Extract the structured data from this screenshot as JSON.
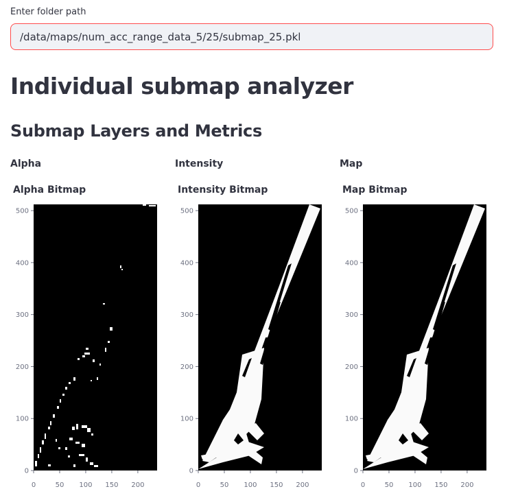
{
  "folder_input": {
    "label": "Enter folder path",
    "value": "/data/maps/num_acc_range_data_5/25/submap_25.pkl"
  },
  "page_title": "Individual submap analyzer",
  "section_title": "Submap Layers and Metrics",
  "columns": [
    {
      "key": "alpha",
      "label": "Alpha",
      "plot_title": "Alpha Bitmap"
    },
    {
      "key": "intensity",
      "label": "Intensity",
      "plot_title": "Intensity Bitmap"
    },
    {
      "key": "map",
      "label": "Map",
      "plot_title": "Map Bitmap"
    }
  ],
  "colors": {
    "text": "#31333f",
    "input_border": "#ff4b4b",
    "input_bg": "#f0f2f6",
    "tick": "#6c7080",
    "plot_bg": "#000000",
    "plot_fg": "#ffffff"
  },
  "chart_data": [
    {
      "type": "heatmap",
      "title": "Alpha Bitmap",
      "x_ticks": [
        0,
        50,
        100,
        150,
        200
      ],
      "y_ticks": [
        0,
        100,
        200,
        300,
        400,
        500
      ],
      "xlim": [
        0,
        237
      ],
      "ylim": [
        0,
        512
      ],
      "colormap": "binary (black background, white content)",
      "content": "sparse scattered edge points along a diagonal band"
    },
    {
      "type": "heatmap",
      "title": "Intensity Bitmap",
      "x_ticks": [
        0,
        50,
        100,
        150,
        200
      ],
      "y_ticks": [
        0,
        100,
        200,
        300,
        400,
        500
      ],
      "xlim": [
        0,
        237
      ],
      "ylim": [
        0,
        512
      ],
      "colormap": "binary (black background, white content)",
      "content": "filled white diagonal road band from bottom-left to top-right"
    },
    {
      "type": "heatmap",
      "title": "Map Bitmap",
      "x_ticks": [
        0,
        50,
        100,
        150,
        200
      ],
      "y_ticks": [
        0,
        100,
        200,
        300,
        400,
        500
      ],
      "xlim": [
        0,
        237
      ],
      "ylim": [
        0,
        512
      ],
      "colormap": "binary (black background, white content)",
      "content": "filled white diagonal road band from bottom-left to top-right"
    }
  ]
}
